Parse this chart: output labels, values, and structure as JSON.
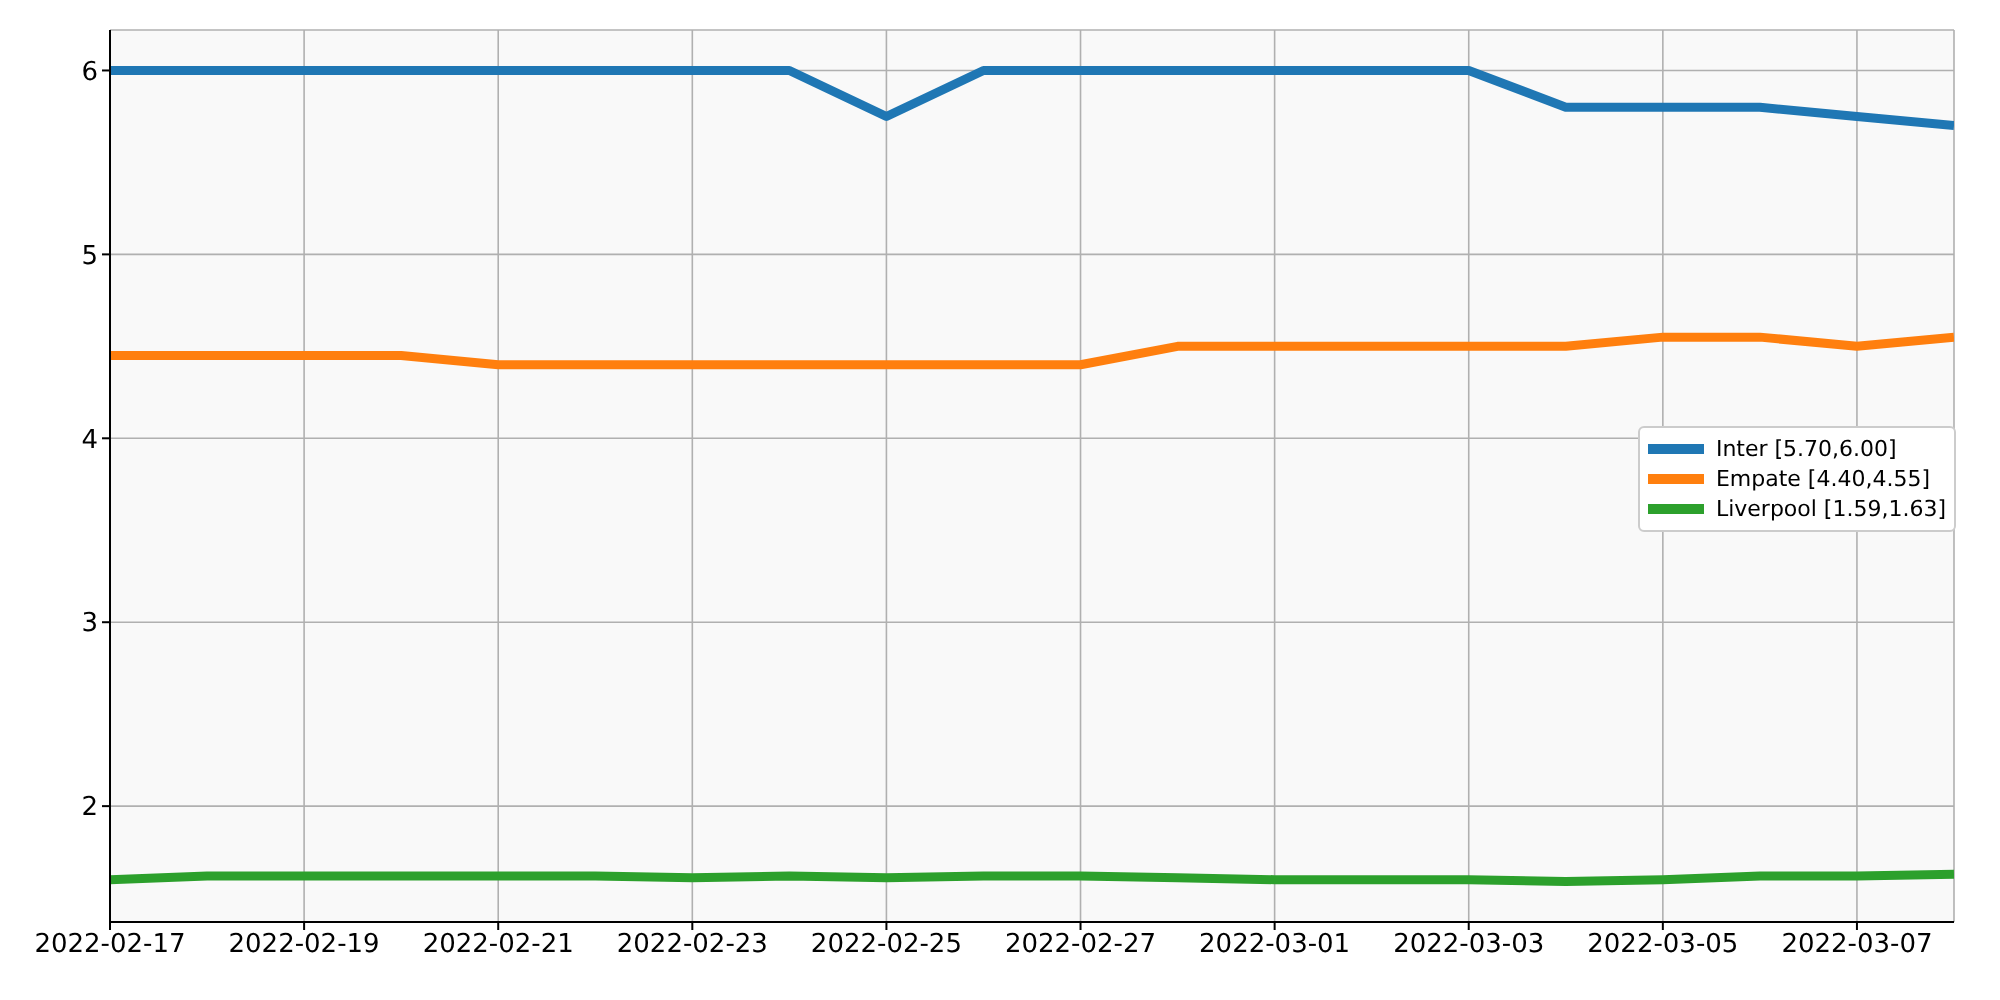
{
  "chart_data": {
    "type": "line",
    "x": [
      "2022-02-17",
      "2022-02-18",
      "2022-02-19",
      "2022-02-20",
      "2022-02-21",
      "2022-02-22",
      "2022-02-23",
      "2022-02-24",
      "2022-02-25",
      "2022-02-26",
      "2022-02-27",
      "2022-02-28",
      "2022-03-01",
      "2022-03-02",
      "2022-03-03",
      "2022-03-04",
      "2022-03-05",
      "2022-03-06",
      "2022-03-07",
      "2022-03-08"
    ],
    "series": [
      {
        "name": "Inter [5.70,6.00]",
        "color": "#1f77b4",
        "values": [
          6,
          6,
          6,
          6,
          6,
          6,
          6,
          6,
          5.75,
          6,
          6,
          6,
          6,
          6,
          6,
          5.8,
          5.8,
          5.8,
          5.75,
          5.7
        ]
      },
      {
        "name": "Empate [4.40,4.55]",
        "color": "#ff7f0e",
        "values": [
          4.45,
          4.45,
          4.45,
          4.45,
          4.4,
          4.4,
          4.4,
          4.4,
          4.4,
          4.4,
          4.4,
          4.5,
          4.5,
          4.5,
          4.5,
          4.5,
          4.55,
          4.55,
          4.5,
          4.55
        ]
      },
      {
        "name": "Liverpool [1.59,1.63]",
        "color": "#2ca02c",
        "values": [
          1.6,
          1.62,
          1.62,
          1.62,
          1.62,
          1.62,
          1.61,
          1.62,
          1.61,
          1.62,
          1.62,
          1.61,
          1.6,
          1.6,
          1.6,
          1.59,
          1.6,
          1.62,
          1.62,
          1.63
        ]
      }
    ],
    "xlim": [
      "2022-02-17",
      "2022-03-08"
    ],
    "xticks": [
      "2022-02-17",
      "2022-02-19",
      "2022-02-21",
      "2022-02-23",
      "2022-02-25",
      "2022-02-27",
      "2022-03-01",
      "2022-03-03",
      "2022-03-05",
      "2022-03-07"
    ],
    "ylim": [
      1.37,
      6.22
    ],
    "yticks": [
      2,
      3,
      4,
      5,
      6
    ],
    "grid": true,
    "legend": "right",
    "marker": "none",
    "line_style": "solid"
  }
}
